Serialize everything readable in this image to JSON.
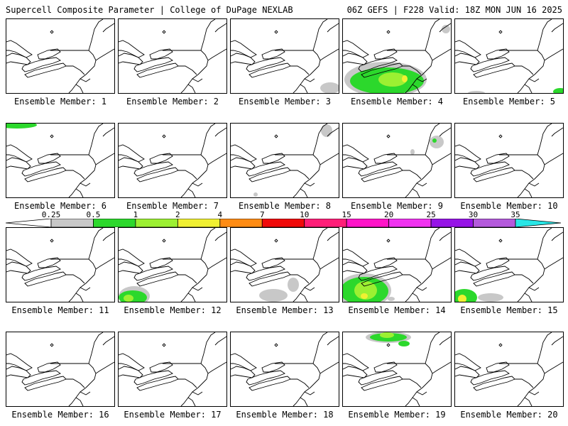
{
  "header": {
    "left": "Supercell Composite Parameter | College of DuPage NEXLAB",
    "right": "06Z GEFS | F228 Valid: 18Z MON JUN 16 2025"
  },
  "legend": {
    "ticks": [
      "0.25",
      "0.5",
      "1",
      "2",
      "4",
      "7",
      "10",
      "15",
      "20",
      "25",
      "30",
      "35"
    ],
    "colors": [
      "#ffffff",
      "#c8c8c8",
      "#2cd82c",
      "#9cf032",
      "#f0f032",
      "#ff8c14",
      "#f00a0a",
      "#ff1e78",
      "#ff14c8",
      "#f032f0",
      "#9614e6",
      "#b45adc",
      "#28e6e6"
    ]
  },
  "members": [
    {
      "label": "Ensemble Member: 1",
      "blobs": []
    },
    {
      "label": "Ensemble Member: 2",
      "blobs": []
    },
    {
      "label": "Ensemble Member: 3",
      "blobs": [
        {
          "c": "#c8c8c8",
          "x": 140,
          "y": 97,
          "rx": 14,
          "ry": 8
        }
      ]
    },
    {
      "label": "Ensemble Member: 4",
      "blobs": [
        {
          "c": "#c8c8c8",
          "x": 60,
          "y": 85,
          "rx": 58,
          "ry": 25
        },
        {
          "c": "#2cd82c",
          "x": 62,
          "y": 87,
          "rx": 52,
          "ry": 19
        },
        {
          "c": "#9cf032",
          "x": 70,
          "y": 85,
          "rx": 20,
          "ry": 10
        },
        {
          "c": "#f0f032",
          "x": 87,
          "y": 84,
          "rx": 4,
          "ry": 5
        },
        {
          "c": "#c8c8c8",
          "x": 145,
          "y": 14,
          "rx": 6,
          "ry": 6
        }
      ]
    },
    {
      "label": "Ensemble Member: 5",
      "blobs": [
        {
          "c": "#2cd82c",
          "x": 148,
          "y": 102,
          "rx": 10,
          "ry": 5
        },
        {
          "c": "#c8c8c8",
          "x": 30,
          "y": 104,
          "rx": 12,
          "ry": 3
        }
      ]
    },
    {
      "label": "Ensemble Member: 6",
      "blobs": [
        {
          "c": "#2cd82c",
          "x": 15,
          "y": 2,
          "rx": 28,
          "ry": 5
        }
      ]
    },
    {
      "label": "Ensemble Member: 7",
      "blobs": []
    },
    {
      "label": "Ensemble Member: 8",
      "blobs": [
        {
          "c": "#c8c8c8",
          "x": 135,
          "y": 10,
          "rx": 8,
          "ry": 9
        },
        {
          "c": "#c8c8c8",
          "x": 35,
          "y": 100,
          "rx": 3,
          "ry": 3
        }
      ]
    },
    {
      "label": "Ensemble Member: 9",
      "blobs": [
        {
          "c": "#c8c8c8",
          "x": 132,
          "y": 26,
          "rx": 10,
          "ry": 9
        },
        {
          "c": "#2cd82c",
          "x": 129,
          "y": 24,
          "rx": 3,
          "ry": 3
        },
        {
          "c": "#c8c8c8",
          "x": 98,
          "y": 40,
          "rx": 3,
          "ry": 4
        }
      ]
    },
    {
      "label": "Ensemble Member: 10",
      "blobs": []
    },
    {
      "label": "Ensemble Member: 11",
      "blobs": []
    },
    {
      "label": "Ensemble Member: 12",
      "blobs": [
        {
          "c": "#c8c8c8",
          "x": 22,
          "y": 96,
          "rx": 22,
          "ry": 14
        },
        {
          "c": "#2cd82c",
          "x": 20,
          "y": 98,
          "rx": 20,
          "ry": 10
        },
        {
          "c": "#9cf032",
          "x": 14,
          "y": 99,
          "rx": 7,
          "ry": 5
        }
      ]
    },
    {
      "label": "Ensemble Member: 13",
      "blobs": [
        {
          "c": "#c8c8c8",
          "x": 60,
          "y": 95,
          "rx": 20,
          "ry": 9
        },
        {
          "c": "#c8c8c8",
          "x": 88,
          "y": 80,
          "rx": 8,
          "ry": 10
        }
      ]
    },
    {
      "label": "Ensemble Member: 14",
      "blobs": [
        {
          "c": "#c8c8c8",
          "x": 30,
          "y": 88,
          "rx": 38,
          "ry": 24
        },
        {
          "c": "#2cd82c",
          "x": 30,
          "y": 89,
          "rx": 34,
          "ry": 20
        },
        {
          "c": "#9cf032",
          "x": 32,
          "y": 88,
          "rx": 16,
          "ry": 13
        },
        {
          "c": "#f0f032",
          "x": 30,
          "y": 96,
          "rx": 5,
          "ry": 4
        },
        {
          "c": "#c8c8c8",
          "x": 68,
          "y": 100,
          "rx": 5,
          "ry": 3
        }
      ]
    },
    {
      "label": "Ensemble Member: 15",
      "blobs": [
        {
          "c": "#2cd82c",
          "x": 13,
          "y": 98,
          "rx": 18,
          "ry": 12
        },
        {
          "c": "#f0f032",
          "x": 10,
          "y": 100,
          "rx": 6,
          "ry": 6
        },
        {
          "c": "#c8c8c8",
          "x": 50,
          "y": 98,
          "rx": 18,
          "ry": 6
        }
      ]
    },
    {
      "label": "Ensemble Member: 16",
      "blobs": []
    },
    {
      "label": "Ensemble Member: 17",
      "blobs": []
    },
    {
      "label": "Ensemble Member: 18",
      "blobs": []
    },
    {
      "label": "Ensemble Member: 19",
      "blobs": [
        {
          "c": "#c8c8c8",
          "x": 64,
          "y": 7,
          "rx": 32,
          "ry": 8
        },
        {
          "c": "#2cd82c",
          "x": 64,
          "y": 7,
          "rx": 26,
          "ry": 6
        },
        {
          "c": "#9cf032",
          "x": 62,
          "y": 4,
          "rx": 10,
          "ry": 4
        },
        {
          "c": "#2cd82c",
          "x": 86,
          "y": 16,
          "rx": 8,
          "ry": 4
        }
      ]
    },
    {
      "label": "Ensemble Member: 20",
      "blobs": []
    }
  ]
}
